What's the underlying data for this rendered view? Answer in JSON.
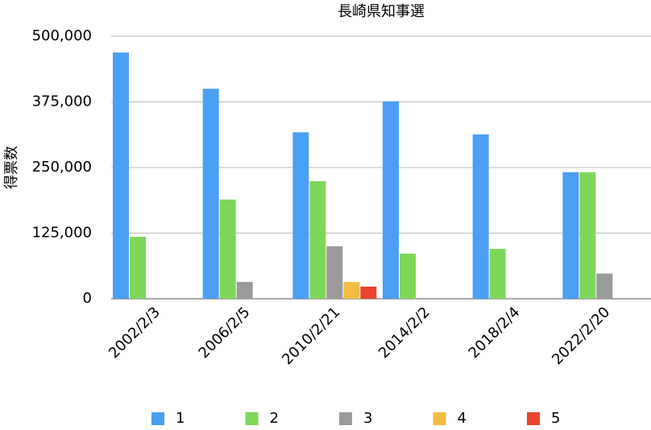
{
  "chart_data": {
    "type": "bar",
    "title": "長崎県知事選",
    "y_label": "得票数",
    "categories": [
      "2002/2/3",
      "2006/2/5",
      "2010/2/21",
      "2014/2/2",
      "2018/2/4",
      "2022/2/20"
    ],
    "series": [
      {
        "name": "1",
        "color": "#4a9ff5",
        "values": [
          469000,
          400000,
          317000,
          376000,
          313000,
          241000
        ]
      },
      {
        "name": "2",
        "color": "#7fd659",
        "values": [
          118000,
          189000,
          224000,
          86000,
          95000,
          241000
        ]
      },
      {
        "name": "3",
        "color": "#9a9a9a",
        "values": [
          null,
          32000,
          100000,
          null,
          null,
          48000
        ]
      },
      {
        "name": "4",
        "color": "#f2bc42",
        "values": [
          null,
          null,
          32000,
          null,
          null,
          null
        ]
      },
      {
        "name": "5",
        "color": "#e8432c",
        "values": [
          null,
          null,
          23000,
          null,
          null,
          null
        ]
      }
    ],
    "ylim": [
      0,
      500000
    ],
    "yticks": [
      0,
      {
        "value": 125000,
        "label": "125,000"
      },
      {
        "value": 250000,
        "label": "250,000"
      },
      {
        "value": 375000,
        "label": "375,000"
      },
      {
        "value": 500000,
        "label": "500,000"
      }
    ],
    "grid": true,
    "legend": "bottom"
  }
}
